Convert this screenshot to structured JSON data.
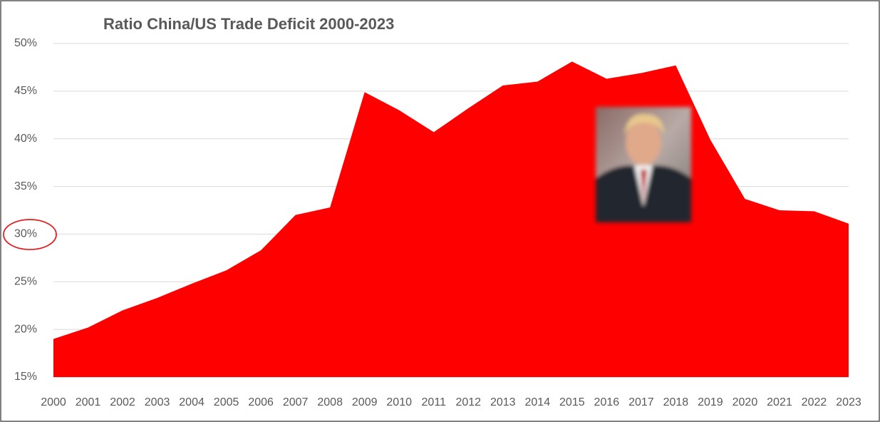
{
  "chart_data": {
    "type": "area",
    "title": "Ratio China/US Trade Deficit 2000-2023",
    "categories": [
      "2000",
      "2001",
      "2002",
      "2003",
      "2004",
      "2005",
      "2006",
      "2007",
      "2008",
      "2009",
      "2010",
      "2011",
      "2012",
      "2013",
      "2014",
      "2015",
      "2016",
      "2017",
      "2018",
      "2019",
      "2020",
      "2021",
      "2022",
      "2023"
    ],
    "values": [
      19.0,
      20.2,
      22.0,
      23.3,
      24.8,
      26.2,
      28.3,
      32.0,
      32.8,
      44.9,
      43.0,
      40.7,
      43.2,
      45.6,
      46.0,
      48.1,
      46.3,
      46.9,
      47.7,
      39.9,
      33.7,
      32.5,
      32.4,
      31.1
    ],
    "color": "#ff0000",
    "ylim": [
      15,
      50
    ],
    "yticks": [
      {
        "value": 15,
        "label": "15%"
      },
      {
        "value": 20,
        "label": "20%"
      },
      {
        "value": 25,
        "label": "25%"
      },
      {
        "value": 30,
        "label": "30%"
      },
      {
        "value": 35,
        "label": "35%"
      },
      {
        "value": 40,
        "label": "40%"
      },
      {
        "value": 45,
        "label": "45%"
      },
      {
        "value": 50,
        "label": "50%"
      }
    ],
    "grid": true
  }
}
